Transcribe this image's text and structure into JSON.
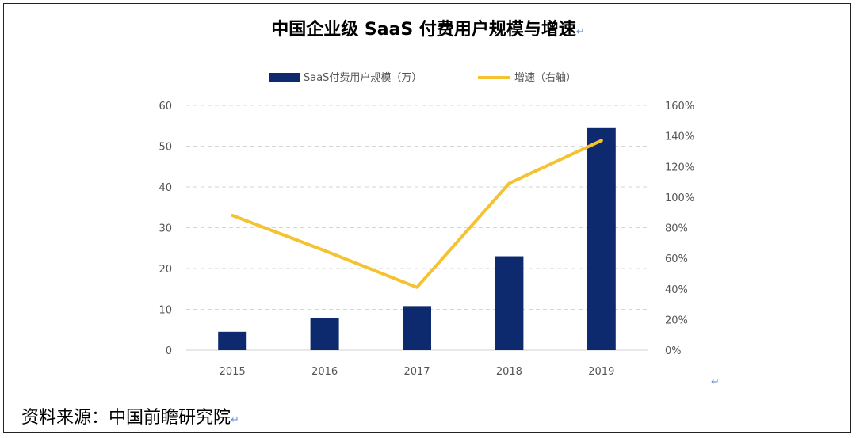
{
  "chart_data": {
    "type": "bar+line",
    "title": "中国企业级 SaaS 付费用户规模与增速",
    "categories": [
      "2015",
      "2016",
      "2017",
      "2018",
      "2019"
    ],
    "series": [
      {
        "name": "SaaS付费用户规模（万）",
        "type": "bar",
        "axis": "left",
        "values": [
          4.5,
          7.8,
          10.8,
          23.0,
          54.6
        ],
        "color": "#0d2a6e"
      },
      {
        "name": "增速（右轴）",
        "type": "line",
        "axis": "right",
        "values": [
          88,
          65,
          41,
          109,
          137
        ],
        "color": "#f5c232"
      }
    ],
    "y_left": {
      "min": 0,
      "max": 60,
      "ticks": [
        "0",
        "10",
        "20",
        "30",
        "40",
        "50",
        "60"
      ]
    },
    "y_right": {
      "min": 0,
      "max": 160,
      "ticks": [
        "0%",
        "20%",
        "40%",
        "60%",
        "80%",
        "100%",
        "120%",
        "140%",
        "160%"
      ]
    },
    "grid": true,
    "legend_position": "top-center"
  },
  "source": "资料来源：中国前瞻研究院",
  "return_mark": "↵"
}
